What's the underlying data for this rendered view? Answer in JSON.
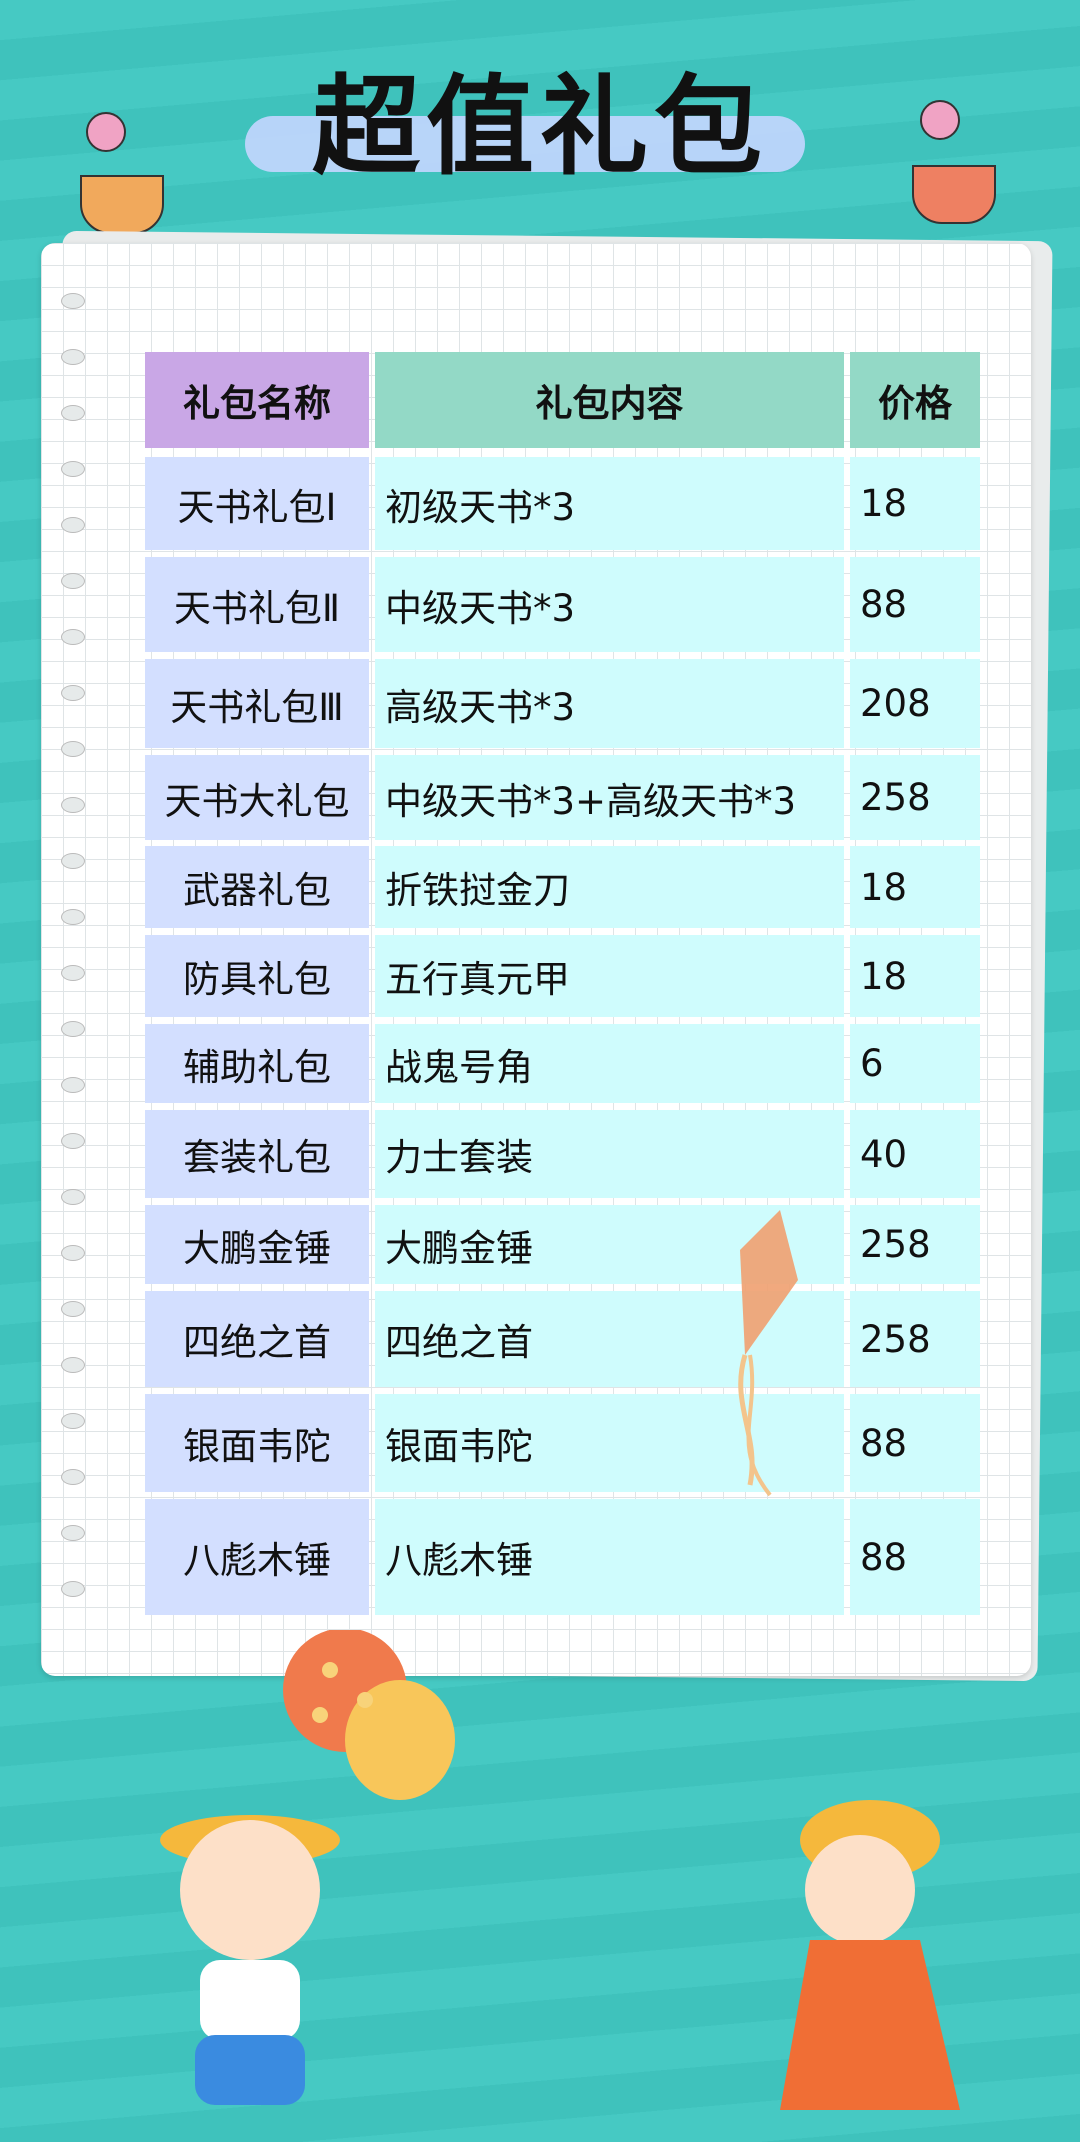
{
  "title": "超值礼包",
  "colors": {
    "background": "#42c5bf",
    "header_name": "#c9a7e6",
    "header_content": "#93d9c6",
    "name_cell": "#d3dfff",
    "content_cell": "#cffcfd"
  },
  "table": {
    "headers": [
      "礼包名称",
      "礼包内容",
      "价格"
    ],
    "rows": [
      [
        "天书礼包Ⅰ",
        "初级天书*3",
        "18"
      ],
      [
        "天书礼包Ⅱ",
        "中级天书*3",
        "88"
      ],
      [
        "天书礼包Ⅲ",
        "高级天书*3",
        "208"
      ],
      [
        "天书大礼包",
        "中级天书*3+高级天书*3",
        "258"
      ],
      [
        "武器礼包",
        "折铁挝金刀",
        "18"
      ],
      [
        "防具礼包",
        "五行真元甲",
        "18"
      ],
      [
        "辅助礼包",
        "战鬼号角",
        "6"
      ],
      [
        "套装礼包",
        "力士套装",
        "40"
      ],
      [
        "大鹏金锤",
        "大鹏金锤",
        "258"
      ],
      [
        "四绝之首",
        "四绝之首",
        "258"
      ],
      [
        "银面韦陀",
        "银面韦陀",
        "88"
      ],
      [
        "八彪木锤",
        "八彪木锤",
        "88"
      ]
    ]
  }
}
